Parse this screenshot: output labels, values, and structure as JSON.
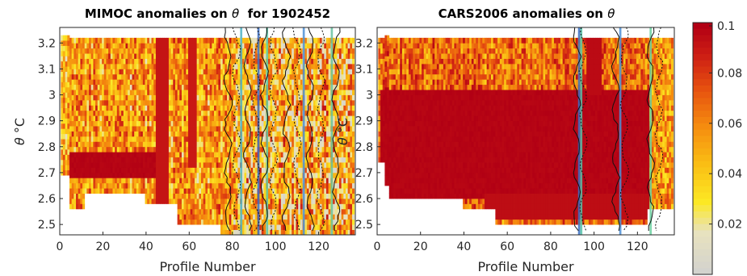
{
  "chart_data": [
    {
      "type": "heatmap",
      "title_prefix": "MIMOC anomalies on ",
      "title_symbol": "θ",
      "title_suffix": "  for 1902452",
      "xlabel": "Profile Number",
      "ylabel_symbol": "θ",
      "ylabel_unit": "°C",
      "xlim": [
        0,
        137
      ],
      "ylim": [
        2.46,
        3.26
      ],
      "xticks": [
        0,
        20,
        40,
        60,
        80,
        100,
        120
      ],
      "yticks": [
        "3.2",
        "3.1",
        "3",
        "2.9",
        "2.8",
        "2.7",
        "2.6",
        "2.5"
      ],
      "ytick_values": [
        3.2,
        3.1,
        3.0,
        2.9,
        2.8,
        2.7,
        2.6,
        2.5
      ],
      "profile_range": [
        1,
        136
      ],
      "theta_range": [
        2.46,
        3.22
      ],
      "saturated_band": {
        "theta_low": 2.68,
        "theta_high": 2.77,
        "profiles": [
          5,
          50
        ]
      },
      "contours": "black solid and dotted anomaly contours, concentrated at profiles 80-135"
    },
    {
      "type": "heatmap",
      "title_prefix": "CARS2006 anomalies on ",
      "title_symbol": "θ",
      "title_suffix": "",
      "xlabel": "Profile Number",
      "ylabel_symbol": "θ",
      "ylabel_unit": "°C",
      "xlim": [
        0,
        137
      ],
      "ylim": [
        2.46,
        3.26
      ],
      "xticks": [
        0,
        20,
        40,
        60,
        80,
        100,
        120
      ],
      "yticks": [
        "3.2",
        "3.1",
        "3",
        "2.9",
        "2.8",
        "2.7",
        "2.6",
        "2.5"
      ],
      "ytick_values": [
        3.2,
        3.1,
        3.0,
        2.9,
        2.8,
        2.7,
        2.6,
        2.5
      ],
      "profile_range": [
        1,
        136
      ],
      "theta_range": [
        2.46,
        3.22
      ],
      "saturated_region": {
        "theta_low": 2.6,
        "theta_high": 3.02,
        "profiles": [
          2,
          125
        ]
      },
      "contours": "black anomaly contours near profiles 90-130"
    }
  ],
  "colorbar": {
    "colormap": "hot-to-yellow-to-gray",
    "range": [
      0,
      0.1
    ],
    "ticks": [
      "0.1",
      "0.08",
      "0.06",
      "0.04",
      "0.02"
    ],
    "tick_values": [
      0.1,
      0.08,
      0.06,
      0.04,
      0.02
    ]
  }
}
